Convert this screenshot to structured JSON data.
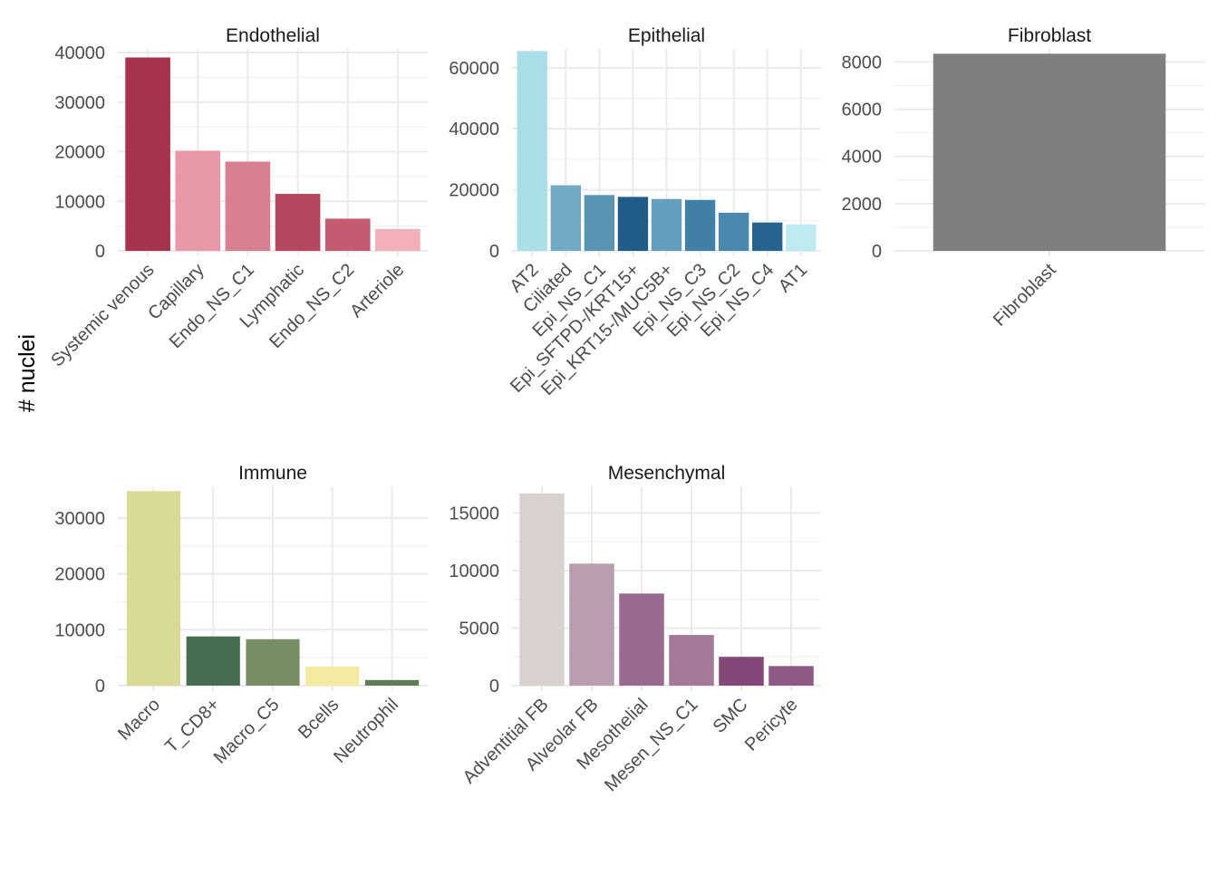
{
  "chart_data": {
    "type": "bar",
    "ylabel": "# nuclei",
    "xlabel": "",
    "grid": true,
    "legend": "none",
    "panels": [
      {
        "title": "Endothelial",
        "ylim": [
          0,
          40000
        ],
        "yticks": [
          0,
          10000,
          20000,
          30000,
          40000
        ],
        "categories": [
          "Systemic venous",
          "Capillary",
          "Endo_NS_C1",
          "Lymphatic",
          "Endo_NS_C2",
          "Arteriole"
        ],
        "values": [
          39000,
          20200,
          18000,
          11500,
          6500,
          4400
        ],
        "colors": [
          "#A8334C",
          "#E897A6",
          "#D87F91",
          "#B5475F",
          "#C55A70",
          "#F3AFBA"
        ]
      },
      {
        "title": "Epithelial",
        "ylim": [
          0,
          65000
        ],
        "yticks": [
          0,
          20000,
          40000,
          60000
        ],
        "categories": [
          "AT2",
          "Ciliated",
          "Epi_NS_C1",
          "Epi_SFTPD-/KRT15+",
          "Epi_KRT15-/MUC5B+",
          "Epi_NS_C3",
          "Epi_NS_C2",
          "Epi_NS_C4",
          "AT1"
        ],
        "values": [
          65500,
          21500,
          18300,
          17700,
          17000,
          16700,
          12500,
          9300,
          8700
        ],
        "colors": [
          "#AADFE8",
          "#72A9C4",
          "#5994B3",
          "#205C88",
          "#639EBC",
          "#4180A5",
          "#4A89AE",
          "#28628F",
          "#BCEAF0"
        ]
      },
      {
        "title": "Fibroblast",
        "ylim": [
          0,
          8400
        ],
        "yticks": [
          0,
          2000,
          4000,
          6000,
          8000
        ],
        "categories": [
          "Fibroblast"
        ],
        "values": [
          8350
        ],
        "colors": [
          "#7F7F7F"
        ]
      },
      {
        "title": "Immune",
        "ylim": [
          0,
          35000
        ],
        "yticks": [
          0,
          10000,
          20000,
          30000
        ],
        "categories": [
          "Macro",
          "T_CD8+",
          "Macro_C5",
          "Bcells",
          "Neutrophil"
        ],
        "values": [
          34800,
          8800,
          8300,
          3400,
          1000
        ],
        "colors": [
          "#D9D998",
          "#476E50",
          "#778E63",
          "#F3EBA0",
          "#5F7B5A"
        ]
      },
      {
        "title": "Mesenchymal",
        "ylim": [
          0,
          17000
        ],
        "yticks": [
          0,
          5000,
          10000,
          15000
        ],
        "categories": [
          "Adventitial FB",
          "Alveolar FB",
          "Mesothelial",
          "Mesen_NS_C1",
          "SMC",
          "Pericyte"
        ],
        "values": [
          16700,
          10600,
          8000,
          4400,
          2500,
          1700
        ],
        "colors": [
          "#D9D1D0",
          "#B89DAE",
          "#996A8D",
          "#A47A98",
          "#834877",
          "#8E5982"
        ]
      }
    ]
  }
}
